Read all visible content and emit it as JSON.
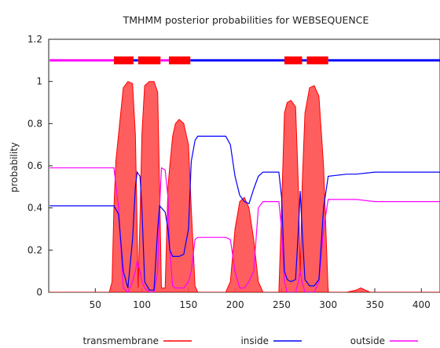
{
  "chart_data": {
    "type": "area",
    "title": "TMHMM posterior probabilities for WEBSEQUENCE",
    "xlabel": "",
    "ylabel": "probability",
    "xlim": [
      0,
      420
    ],
    "ylim": [
      0,
      1.2
    ],
    "xticks": [
      50,
      100,
      150,
      200,
      250,
      300,
      350,
      400
    ],
    "yticks": [
      0,
      0.2,
      0.4,
      0.6,
      0.8,
      1,
      1.2
    ],
    "xtick_labels": [
      "50",
      "100",
      "150",
      "200",
      "250",
      "300",
      "350",
      "400"
    ],
    "ytick_labels": [
      "0",
      "0.2",
      "0.4",
      "0.6",
      "0.8",
      "1",
      "1.2"
    ],
    "legend_position": "bottom",
    "colors": {
      "transmembrane": "#ff0000",
      "inside": "#0000ff",
      "outside": "#ff00ff"
    },
    "series": [
      {
        "name": "transmembrane",
        "style": "filled-area",
        "x": [
          1,
          65,
          68,
          70,
          72,
          75,
          80,
          85,
          90,
          93,
          95,
          96,
          98,
          100,
          103,
          108,
          113,
          117,
          119,
          121,
          125,
          128,
          130,
          133,
          136,
          140,
          145,
          150,
          153,
          157,
          160,
          190,
          195,
          200,
          205,
          210,
          215,
          220,
          225,
          230,
          247,
          250,
          253,
          256,
          260,
          265,
          268,
          270,
          272,
          275,
          280,
          285,
          290,
          295,
          300,
          320,
          330,
          335,
          340,
          345,
          420
        ],
        "values": [
          0,
          0,
          0.05,
          0.4,
          0.62,
          0.75,
          0.97,
          1.0,
          0.99,
          0.75,
          0.3,
          0.02,
          0.35,
          0.75,
          0.98,
          1.0,
          1.0,
          0.95,
          0.5,
          0.02,
          0.02,
          0.5,
          0.6,
          0.74,
          0.8,
          0.82,
          0.8,
          0.7,
          0.4,
          0.03,
          0,
          0,
          0.05,
          0.3,
          0.43,
          0.45,
          0.4,
          0.25,
          0.05,
          0,
          0,
          0.4,
          0.85,
          0.9,
          0.91,
          0.88,
          0.5,
          0.08,
          0.5,
          0.85,
          0.97,
          0.98,
          0.93,
          0.6,
          0,
          0,
          0.01,
          0.02,
          0.01,
          0,
          0
        ]
      },
      {
        "name": "inside",
        "style": "line",
        "x": [
          1,
          65,
          70,
          75,
          80,
          85,
          90,
          93,
          95,
          98,
          100,
          103,
          108,
          113,
          117,
          119,
          121,
          125,
          128,
          130,
          133,
          136,
          140,
          145,
          150,
          153,
          157,
          160,
          190,
          195,
          200,
          205,
          210,
          215,
          220,
          225,
          230,
          247,
          250,
          253,
          256,
          260,
          265,
          268,
          270,
          272,
          275,
          280,
          285,
          290,
          295,
          300,
          320,
          330,
          350,
          420
        ],
        "values": [
          0.41,
          0.41,
          0.41,
          0.37,
          0.1,
          0.02,
          0.25,
          0.5,
          0.57,
          0.55,
          0.4,
          0.05,
          0.01,
          0.01,
          0.3,
          0.41,
          0.4,
          0.38,
          0.3,
          0.2,
          0.17,
          0.17,
          0.17,
          0.18,
          0.3,
          0.62,
          0.72,
          0.74,
          0.74,
          0.7,
          0.55,
          0.46,
          0.43,
          0.42,
          0.49,
          0.55,
          0.57,
          0.57,
          0.45,
          0.1,
          0.06,
          0.05,
          0.06,
          0.3,
          0.48,
          0.3,
          0.06,
          0.03,
          0.03,
          0.06,
          0.4,
          0.55,
          0.56,
          0.56,
          0.57,
          0.57
        ]
      },
      {
        "name": "outside",
        "style": "line",
        "x": [
          1,
          65,
          70,
          75,
          80,
          85,
          90,
          93,
          95,
          98,
          100,
          103,
          108,
          113,
          117,
          119,
          121,
          125,
          128,
          130,
          133,
          136,
          140,
          145,
          150,
          153,
          157,
          160,
          190,
          195,
          200,
          205,
          210,
          215,
          220,
          225,
          230,
          247,
          250,
          253,
          256,
          260,
          265,
          268,
          270,
          272,
          275,
          280,
          285,
          290,
          295,
          300,
          320,
          330,
          350,
          420
        ],
        "values": [
          0.59,
          0.59,
          0.59,
          0.4,
          0.02,
          0.0,
          0.05,
          0.1,
          0.15,
          0.1,
          0.05,
          0.02,
          0.0,
          0.0,
          0.1,
          0.4,
          0.59,
          0.58,
          0.45,
          0.2,
          0.03,
          0.02,
          0.02,
          0.02,
          0.05,
          0.1,
          0.25,
          0.26,
          0.26,
          0.25,
          0.1,
          0.02,
          0.02,
          0.05,
          0.1,
          0.4,
          0.43,
          0.43,
          0.3,
          0.05,
          0.0,
          0.0,
          0.0,
          0.05,
          0.1,
          0.05,
          0.0,
          0.0,
          0.0,
          0.05,
          0.3,
          0.44,
          0.44,
          0.44,
          0.43,
          0.43
        ]
      }
    ],
    "topology": [
      {
        "state": "outside",
        "from": 1,
        "to": 70
      },
      {
        "state": "transmembrane",
        "from": 70,
        "to": 91
      },
      {
        "state": "inside",
        "from": 91,
        "to": 96
      },
      {
        "state": "transmembrane",
        "from": 96,
        "to": 120
      },
      {
        "state": "outside",
        "from": 120,
        "to": 129
      },
      {
        "state": "transmembrane",
        "from": 129,
        "to": 152
      },
      {
        "state": "inside",
        "from": 152,
        "to": 253
      },
      {
        "state": "transmembrane",
        "from": 253,
        "to": 272
      },
      {
        "state": "inside",
        "from": 272,
        "to": 277
      },
      {
        "state": "transmembrane",
        "from": 277,
        "to": 300
      },
      {
        "state": "inside",
        "from": 300,
        "to": 420
      }
    ],
    "topology_level": 1.1,
    "legend": [
      {
        "label": "transmembrane",
        "series": "transmembrane"
      },
      {
        "label": "inside",
        "series": "inside"
      },
      {
        "label": "outside",
        "series": "outside"
      }
    ]
  }
}
